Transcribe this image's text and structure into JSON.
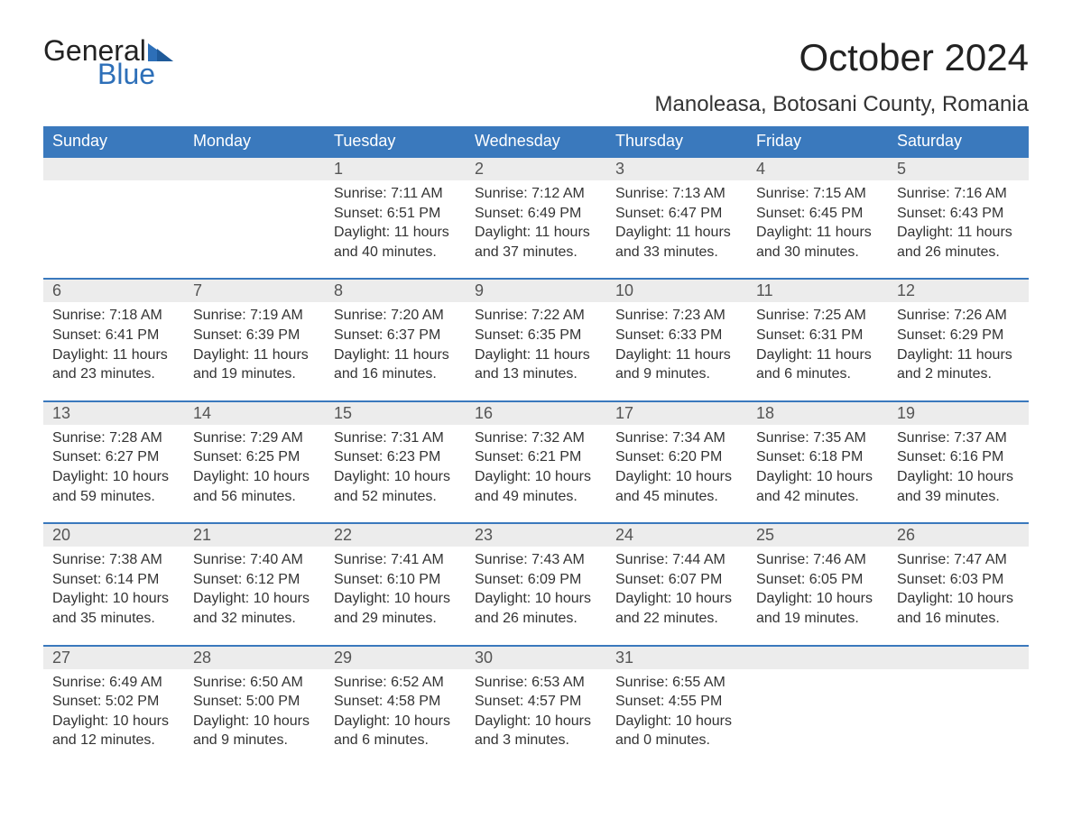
{
  "logo": {
    "word1": "General",
    "word2": "Blue",
    "text_color": "#222222",
    "accent_color": "#2d6fb8"
  },
  "header": {
    "month_title": "October 2024",
    "location": "Manoleasa, Botosani County, Romania"
  },
  "calendar": {
    "header_bg": "#3a79bd",
    "header_fg": "#ffffff",
    "daynum_bg": "#ececec",
    "row_border": "#3a79bd",
    "day_names": [
      "Sunday",
      "Monday",
      "Tuesday",
      "Wednesday",
      "Thursday",
      "Friday",
      "Saturday"
    ],
    "weeks": [
      [
        null,
        null,
        {
          "n": "1",
          "sunrise": "Sunrise: 7:11 AM",
          "sunset": "Sunset: 6:51 PM",
          "dl1": "Daylight: 11 hours",
          "dl2": "and 40 minutes."
        },
        {
          "n": "2",
          "sunrise": "Sunrise: 7:12 AM",
          "sunset": "Sunset: 6:49 PM",
          "dl1": "Daylight: 11 hours",
          "dl2": "and 37 minutes."
        },
        {
          "n": "3",
          "sunrise": "Sunrise: 7:13 AM",
          "sunset": "Sunset: 6:47 PM",
          "dl1": "Daylight: 11 hours",
          "dl2": "and 33 minutes."
        },
        {
          "n": "4",
          "sunrise": "Sunrise: 7:15 AM",
          "sunset": "Sunset: 6:45 PM",
          "dl1": "Daylight: 11 hours",
          "dl2": "and 30 minutes."
        },
        {
          "n": "5",
          "sunrise": "Sunrise: 7:16 AM",
          "sunset": "Sunset: 6:43 PM",
          "dl1": "Daylight: 11 hours",
          "dl2": "and 26 minutes."
        }
      ],
      [
        {
          "n": "6",
          "sunrise": "Sunrise: 7:18 AM",
          "sunset": "Sunset: 6:41 PM",
          "dl1": "Daylight: 11 hours",
          "dl2": "and 23 minutes."
        },
        {
          "n": "7",
          "sunrise": "Sunrise: 7:19 AM",
          "sunset": "Sunset: 6:39 PM",
          "dl1": "Daylight: 11 hours",
          "dl2": "and 19 minutes."
        },
        {
          "n": "8",
          "sunrise": "Sunrise: 7:20 AM",
          "sunset": "Sunset: 6:37 PM",
          "dl1": "Daylight: 11 hours",
          "dl2": "and 16 minutes."
        },
        {
          "n": "9",
          "sunrise": "Sunrise: 7:22 AM",
          "sunset": "Sunset: 6:35 PM",
          "dl1": "Daylight: 11 hours",
          "dl2": "and 13 minutes."
        },
        {
          "n": "10",
          "sunrise": "Sunrise: 7:23 AM",
          "sunset": "Sunset: 6:33 PM",
          "dl1": "Daylight: 11 hours",
          "dl2": "and 9 minutes."
        },
        {
          "n": "11",
          "sunrise": "Sunrise: 7:25 AM",
          "sunset": "Sunset: 6:31 PM",
          "dl1": "Daylight: 11 hours",
          "dl2": "and 6 minutes."
        },
        {
          "n": "12",
          "sunrise": "Sunrise: 7:26 AM",
          "sunset": "Sunset: 6:29 PM",
          "dl1": "Daylight: 11 hours",
          "dl2": "and 2 minutes."
        }
      ],
      [
        {
          "n": "13",
          "sunrise": "Sunrise: 7:28 AM",
          "sunset": "Sunset: 6:27 PM",
          "dl1": "Daylight: 10 hours",
          "dl2": "and 59 minutes."
        },
        {
          "n": "14",
          "sunrise": "Sunrise: 7:29 AM",
          "sunset": "Sunset: 6:25 PM",
          "dl1": "Daylight: 10 hours",
          "dl2": "and 56 minutes."
        },
        {
          "n": "15",
          "sunrise": "Sunrise: 7:31 AM",
          "sunset": "Sunset: 6:23 PM",
          "dl1": "Daylight: 10 hours",
          "dl2": "and 52 minutes."
        },
        {
          "n": "16",
          "sunrise": "Sunrise: 7:32 AM",
          "sunset": "Sunset: 6:21 PM",
          "dl1": "Daylight: 10 hours",
          "dl2": "and 49 minutes."
        },
        {
          "n": "17",
          "sunrise": "Sunrise: 7:34 AM",
          "sunset": "Sunset: 6:20 PM",
          "dl1": "Daylight: 10 hours",
          "dl2": "and 45 minutes."
        },
        {
          "n": "18",
          "sunrise": "Sunrise: 7:35 AM",
          "sunset": "Sunset: 6:18 PM",
          "dl1": "Daylight: 10 hours",
          "dl2": "and 42 minutes."
        },
        {
          "n": "19",
          "sunrise": "Sunrise: 7:37 AM",
          "sunset": "Sunset: 6:16 PM",
          "dl1": "Daylight: 10 hours",
          "dl2": "and 39 minutes."
        }
      ],
      [
        {
          "n": "20",
          "sunrise": "Sunrise: 7:38 AM",
          "sunset": "Sunset: 6:14 PM",
          "dl1": "Daylight: 10 hours",
          "dl2": "and 35 minutes."
        },
        {
          "n": "21",
          "sunrise": "Sunrise: 7:40 AM",
          "sunset": "Sunset: 6:12 PM",
          "dl1": "Daylight: 10 hours",
          "dl2": "and 32 minutes."
        },
        {
          "n": "22",
          "sunrise": "Sunrise: 7:41 AM",
          "sunset": "Sunset: 6:10 PM",
          "dl1": "Daylight: 10 hours",
          "dl2": "and 29 minutes."
        },
        {
          "n": "23",
          "sunrise": "Sunrise: 7:43 AM",
          "sunset": "Sunset: 6:09 PM",
          "dl1": "Daylight: 10 hours",
          "dl2": "and 26 minutes."
        },
        {
          "n": "24",
          "sunrise": "Sunrise: 7:44 AM",
          "sunset": "Sunset: 6:07 PM",
          "dl1": "Daylight: 10 hours",
          "dl2": "and 22 minutes."
        },
        {
          "n": "25",
          "sunrise": "Sunrise: 7:46 AM",
          "sunset": "Sunset: 6:05 PM",
          "dl1": "Daylight: 10 hours",
          "dl2": "and 19 minutes."
        },
        {
          "n": "26",
          "sunrise": "Sunrise: 7:47 AM",
          "sunset": "Sunset: 6:03 PM",
          "dl1": "Daylight: 10 hours",
          "dl2": "and 16 minutes."
        }
      ],
      [
        {
          "n": "27",
          "sunrise": "Sunrise: 6:49 AM",
          "sunset": "Sunset: 5:02 PM",
          "dl1": "Daylight: 10 hours",
          "dl2": "and 12 minutes."
        },
        {
          "n": "28",
          "sunrise": "Sunrise: 6:50 AM",
          "sunset": "Sunset: 5:00 PM",
          "dl1": "Daylight: 10 hours",
          "dl2": "and 9 minutes."
        },
        {
          "n": "29",
          "sunrise": "Sunrise: 6:52 AM",
          "sunset": "Sunset: 4:58 PM",
          "dl1": "Daylight: 10 hours",
          "dl2": "and 6 minutes."
        },
        {
          "n": "30",
          "sunrise": "Sunrise: 6:53 AM",
          "sunset": "Sunset: 4:57 PM",
          "dl1": "Daylight: 10 hours",
          "dl2": "and 3 minutes."
        },
        {
          "n": "31",
          "sunrise": "Sunrise: 6:55 AM",
          "sunset": "Sunset: 4:55 PM",
          "dl1": "Daylight: 10 hours",
          "dl2": "and 0 minutes."
        },
        null,
        null
      ]
    ]
  }
}
